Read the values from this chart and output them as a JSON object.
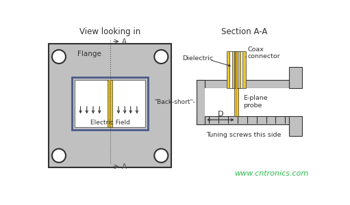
{
  "bg_color": "#f5f5f5",
  "white": "#ffffff",
  "gray_flange": "#c0c0c0",
  "gray_wall": "#b8b8b8",
  "gray_dark": "#707070",
  "yellow_outer": "#e8c830",
  "yellow_inner": "#d4a820",
  "dark": "#303030",
  "dark2": "#505050",
  "title_left": "View looking in",
  "title_right": "Section A-A",
  "label_flange": "Flange",
  "label_efield": "Electric Field",
  "label_coax": "Coax\nconnector",
  "label_dielectric": "Dielectric",
  "label_backshort": "\"Back-short\"-",
  "label_eplane": "E-plane\nprobe",
  "label_D": "D",
  "label_tuning": "Tuning screws this side",
  "label_A": "A",
  "watermark": "www.cntronics.com"
}
